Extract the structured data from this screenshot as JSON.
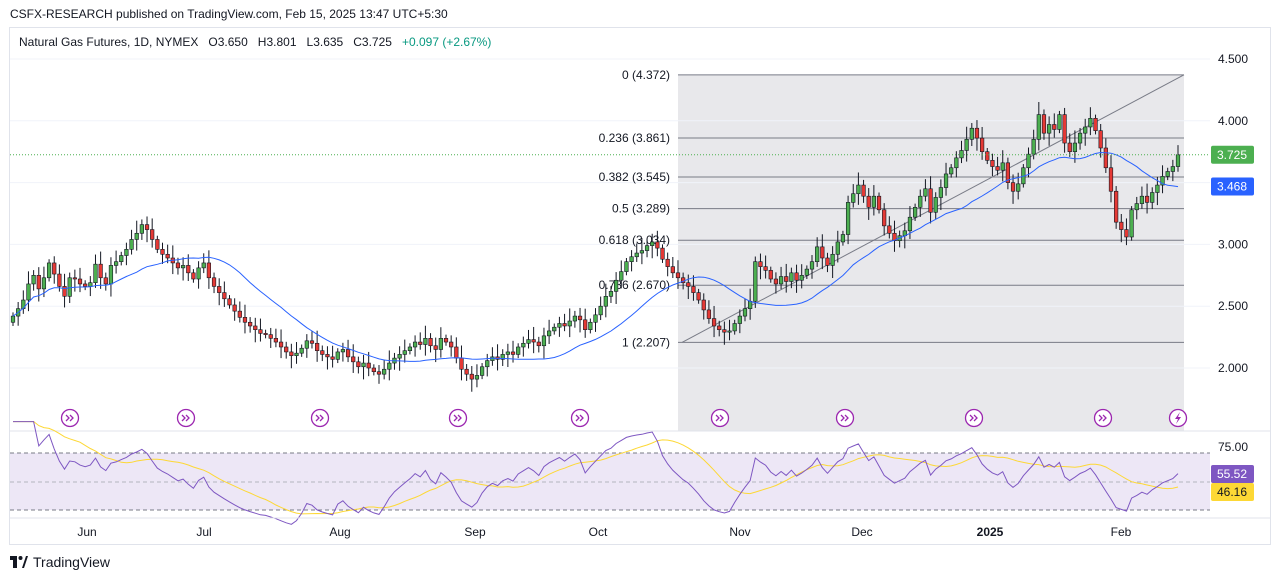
{
  "publisher_line": "CSFX-RESEARCH published on TradingView.com, Feb 15, 2025 13:47 UTC+5:30",
  "legend": {
    "symbol": "Natural Gas Futures, 1D, NYMEX",
    "open": "O3.650",
    "high": "H3.801",
    "low": "L3.635",
    "close": "C3.725",
    "change": "+0.097 (+2.67%)"
  },
  "footer": {
    "brand": "TradingView"
  },
  "colors": {
    "up": "#4caf50",
    "down": "#e53935",
    "ma": "#2962ff",
    "rsi": "#7e57c2",
    "rsi_ma": "#fdd835",
    "price_tag": "#4caf50",
    "ma_tag": "#2962ff",
    "rsi_tag": "#7e57c2",
    "rsi_ma_tag": "#fdd835"
  },
  "icons": {
    "dividend_markers": "arrow-circle-icon",
    "earnings_marker": "lightning-circle-icon"
  },
  "chart_data": {
    "type": "candlestick",
    "instrument": "Natural Gas Futures",
    "timeframe": "1D",
    "x_ticks": [
      "Jun",
      "Jul",
      "Aug",
      "Sep",
      "Oct",
      "Nov",
      "Dec",
      "2025",
      "Feb"
    ],
    "price_axis": {
      "ticks": [
        "4.500",
        "4.000",
        "3.500",
        "3.000",
        "2.500",
        "2.000"
      ],
      "range": [
        1.55,
        4.65
      ]
    },
    "last_price": {
      "value": 3.725,
      "label": "3.725"
    },
    "ma_last": {
      "value": 3.468,
      "label": "3.468"
    },
    "fibonacci": {
      "levels": [
        {
          "ratio": 0,
          "price": 4.372,
          "label": "0 (4.372)"
        },
        {
          "ratio": 0.236,
          "price": 3.861,
          "label": "0.236 (3.861)"
        },
        {
          "ratio": 0.382,
          "price": 3.545,
          "label": "0.382 (3.545)"
        },
        {
          "ratio": 0.5,
          "price": 3.289,
          "label": "0.5 (3.289)"
        },
        {
          "ratio": 0.618,
          "price": 3.034,
          "label": "0.618 (3.034)"
        },
        {
          "ratio": 0.786,
          "price": 2.67,
          "label": "0.786 (2.670)"
        },
        {
          "ratio": 1,
          "price": 2.207,
          "label": "1 (2.207)"
        }
      ],
      "trendline": {
        "from_price": 2.207,
        "to_price": 4.372
      }
    },
    "closes": [
      2.42,
      2.48,
      2.55,
      2.68,
      2.75,
      2.64,
      2.73,
      2.85,
      2.76,
      2.66,
      2.58,
      2.73,
      2.72,
      2.68,
      2.66,
      2.69,
      2.84,
      2.73,
      2.68,
      2.83,
      2.86,
      2.91,
      2.96,
      3.04,
      3.09,
      3.16,
      3.12,
      3.04,
      2.96,
      2.92,
      2.89,
      2.85,
      2.81,
      2.83,
      2.77,
      2.72,
      2.81,
      2.85,
      2.73,
      2.66,
      2.61,
      2.56,
      2.51,
      2.46,
      2.41,
      2.37,
      2.34,
      2.31,
      2.28,
      2.27,
      2.24,
      2.21,
      2.17,
      2.13,
      2.1,
      2.12,
      2.16,
      2.22,
      2.2,
      2.14,
      2.11,
      2.09,
      2.07,
      2.13,
      2.15,
      2.09,
      2.05,
      2.01,
      2.04,
      2.0,
      1.97,
      1.95,
      1.99,
      2.04,
      2.08,
      2.11,
      2.14,
      2.17,
      2.21,
      2.19,
      2.24,
      2.18,
      2.15,
      2.24,
      2.21,
      2.17,
      2.08,
      1.99,
      1.95,
      1.91,
      1.94,
      2.01,
      2.06,
      2.09,
      2.07,
      2.11,
      2.13,
      2.11,
      2.17,
      2.2,
      2.23,
      2.21,
      2.18,
      2.26,
      2.3,
      2.33,
      2.36,
      2.34,
      2.38,
      2.42,
      2.39,
      2.31,
      2.37,
      2.43,
      2.5,
      2.58,
      2.62,
      2.71,
      2.78,
      2.86,
      2.9,
      2.93,
      2.95,
      2.99,
      3.02,
      2.97,
      2.88,
      2.82,
      2.77,
      2.73,
      2.69,
      2.66,
      2.61,
      2.55,
      2.47,
      2.4,
      2.34,
      2.31,
      2.29,
      2.3,
      2.36,
      2.42,
      2.48,
      2.54,
      2.86,
      2.82,
      2.79,
      2.72,
      2.68,
      2.74,
      2.7,
      2.77,
      2.71,
      2.75,
      2.8,
      2.86,
      2.98,
      2.89,
      2.83,
      2.92,
      3.02,
      3.08,
      3.34,
      3.41,
      3.48,
      3.39,
      3.3,
      3.39,
      3.28,
      3.15,
      3.09,
      3.03,
      3.07,
      3.11,
      3.22,
      3.3,
      3.39,
      3.45,
      3.26,
      3.38,
      3.46,
      3.57,
      3.62,
      3.7,
      3.76,
      3.85,
      3.94,
      3.86,
      3.75,
      3.68,
      3.63,
      3.6,
      3.66,
      3.5,
      3.43,
      3.49,
      3.62,
      3.73,
      3.85,
      4.05,
      3.9,
      3.97,
      3.93,
      4.05,
      3.82,
      3.75,
      3.82,
      3.9,
      3.95,
      4.02,
      3.92,
      3.78,
      3.62,
      3.43,
      3.18,
      3.12,
      3.06,
      3.28,
      3.33,
      3.39,
      3.34,
      3.42,
      3.48,
      3.55,
      3.59,
      3.63,
      3.725
    ],
    "rsi": {
      "axis_tick": "75.00",
      "last": {
        "value": 55.52,
        "label": "55.52"
      },
      "ma_last": {
        "value": 46.16,
        "label": "46.16"
      },
      "band": [
        30,
        70
      ]
    }
  }
}
